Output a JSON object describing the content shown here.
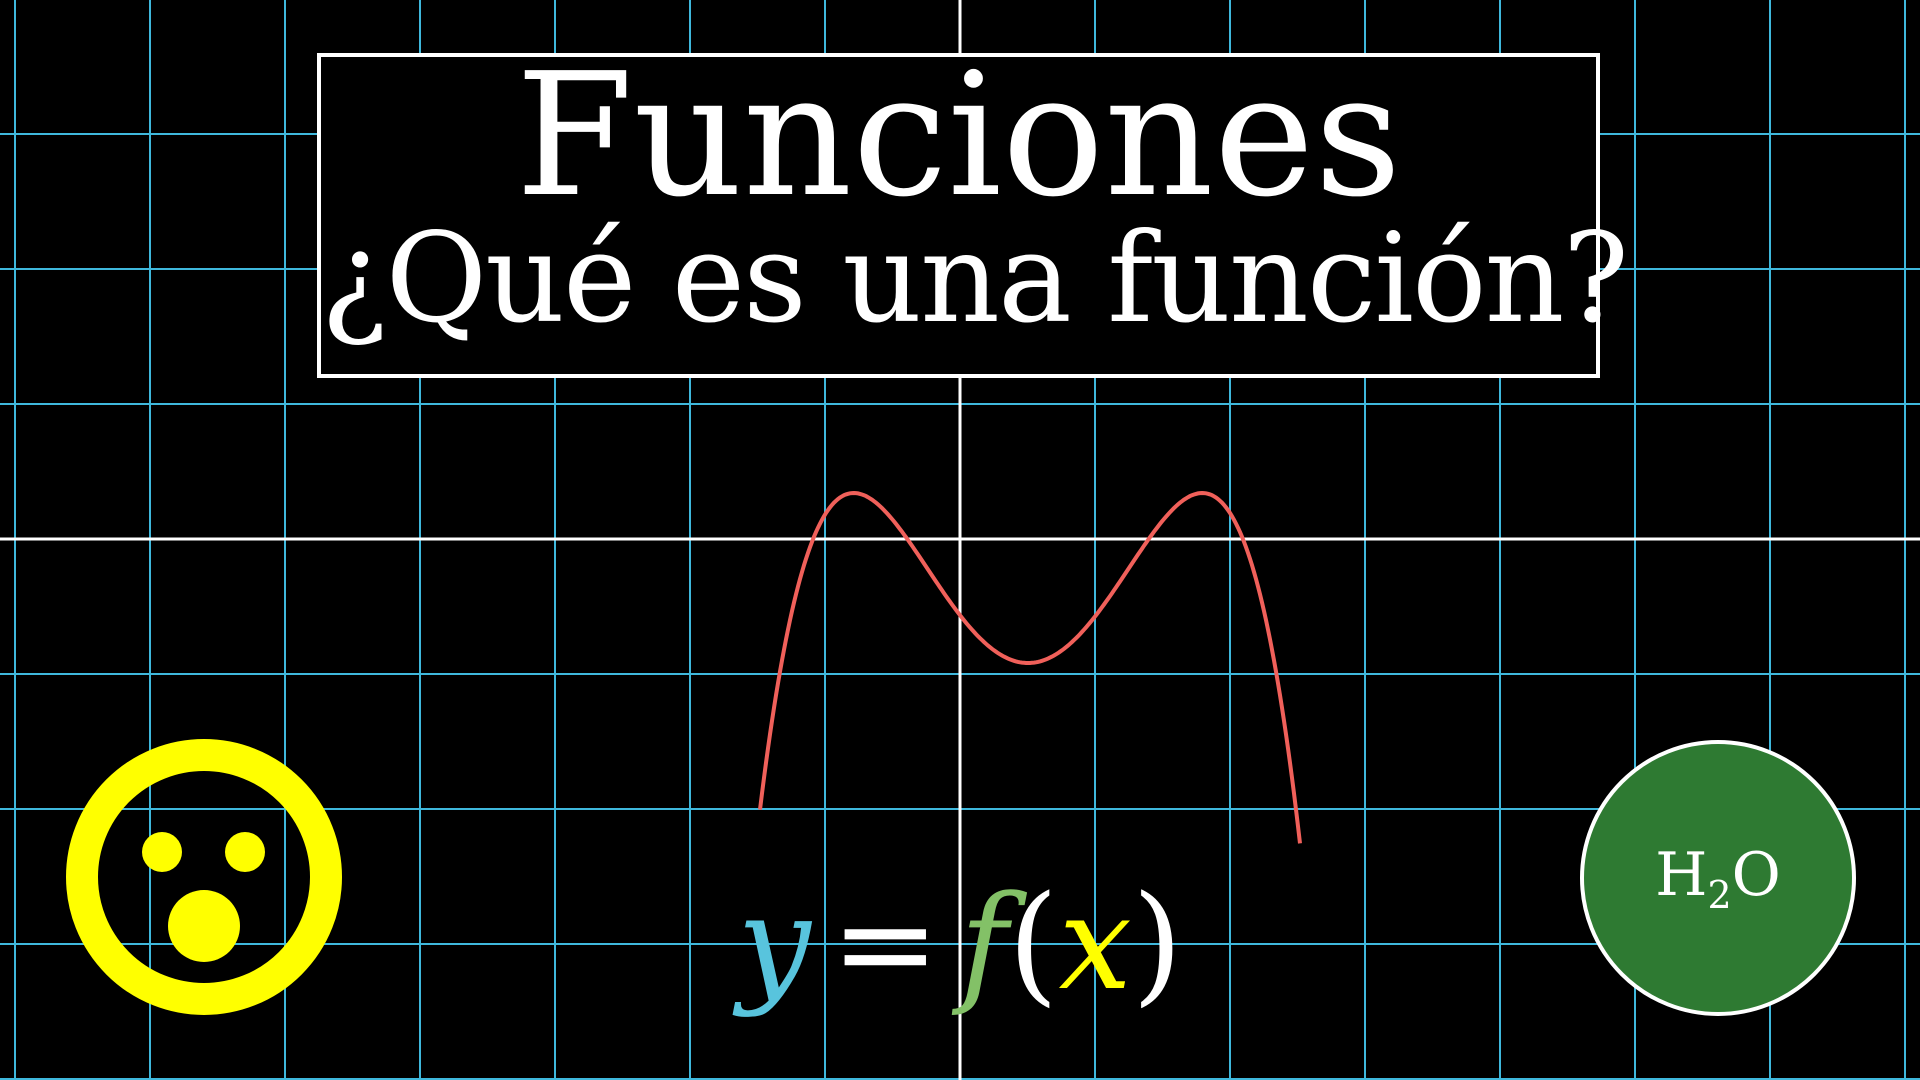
{
  "title": {
    "main": "Funciones",
    "subtitle": "¿Qué es una función?"
  },
  "formula": {
    "output_var": "y",
    "equals": "=",
    "function_name": "f",
    "open_paren": "(",
    "input_var": "x",
    "close_paren": ")"
  },
  "molecule": {
    "element_h": "H",
    "subscript": "2",
    "element_o": "O"
  },
  "colors": {
    "background": "#000000",
    "grid": "#3fb8dc",
    "axes": "#ffffff",
    "curve": "#f0605a",
    "face": "#ffff00",
    "output_var": "#58c4dd",
    "function_name": "#83c167",
    "input_var": "#ffff00",
    "molecule_fill": "#2e7a32",
    "text": "#ffffff"
  },
  "icons": {
    "face": "surprised-face-icon",
    "molecule": "water-molecule-icon"
  }
}
